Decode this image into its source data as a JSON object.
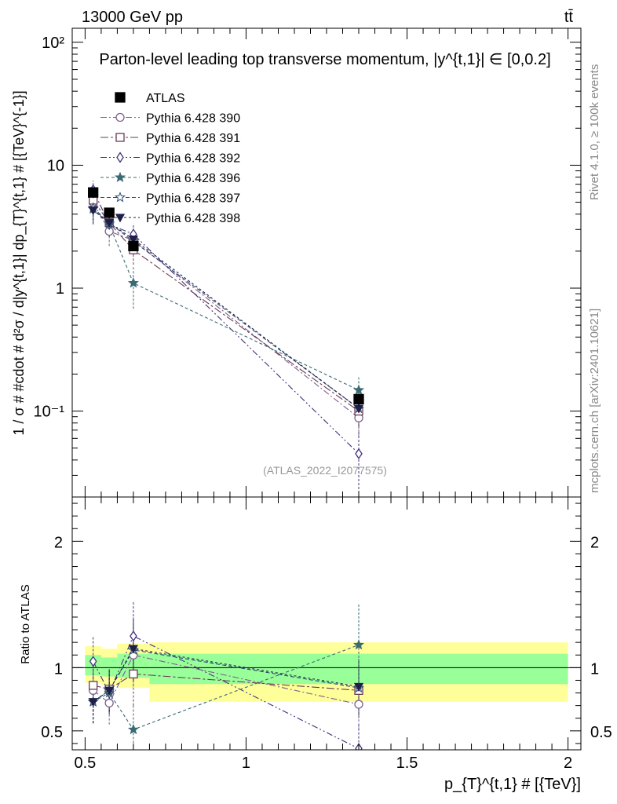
{
  "header": {
    "energy_label": "13000 GeV pp",
    "process_label": "tt̄",
    "side_label_top": "Rivet 4.1.0, ≥ 100k events",
    "side_label_bottom": "mcplots.cern.ch [arXiv:2401.10621]",
    "analysis_id": "(ATLAS_2022_I2077575)"
  },
  "colors": {
    "data": "#000000",
    "p390": "#7f5f8f",
    "p391": "#6b3a50",
    "p392": "#43307a",
    "p396": "#3a6a72",
    "p397": "#2a4a70",
    "p398": "#1f1f4a",
    "band_inner": "#99ff99",
    "band_outer": "#ffff99"
  },
  "chart_data": [
    {
      "type": "scatter",
      "panel": "main",
      "title": "Parton-level leading top transverse momentum, |y^{t,1}| ∈ [0,0.2]",
      "ylabel": "1 / σ # #cdot # d²σ / d|y^{t,1}| dp_{T}^{t,1} # [{TeV}^{-1}]",
      "yscale": "log",
      "ylim": [
        0.02,
        130
      ],
      "xlim": [
        0.46,
        2.04
      ],
      "yticks": [
        {
          "value": 0.1,
          "label": "10⁻¹"
        },
        {
          "value": 1,
          "label": "1"
        },
        {
          "value": 10,
          "label": "10"
        },
        {
          "value": 100,
          "label": "10²"
        }
      ],
      "legend_position": "upper-left",
      "series": [
        {
          "name": "ATLAS",
          "key": "data",
          "marker": "square-filled",
          "x": [
            0.525,
            0.575,
            0.65,
            1.35
          ],
          "values": [
            6.0,
            4.1,
            2.2,
            0.125
          ],
          "xerr": [
            0.025,
            0.025,
            0.05,
            0.65
          ],
          "yerr": [
            0.6,
            0.35,
            0.2,
            0.015
          ]
        },
        {
          "name": "Pythia 6.428 390",
          "key": "p390",
          "marker": "circle-open",
          "dash": "8,3,2,3",
          "x": [
            0.525,
            0.575,
            0.65,
            1.35
          ],
          "values": [
            5.0,
            2.9,
            2.45,
            0.088
          ],
          "yerr": [
            1.0,
            0.7,
            0.55,
            0.025
          ]
        },
        {
          "name": "Pythia 6.428 391",
          "key": "p391",
          "marker": "square-open",
          "dash": "10,3,3,3",
          "x": [
            0.525,
            0.575,
            0.65,
            1.35
          ],
          "values": [
            5.2,
            3.4,
            2.05,
            0.1
          ],
          "yerr": [
            1.0,
            0.7,
            0.5,
            0.028
          ]
        },
        {
          "name": "Pythia 6.428 392",
          "key": "p392",
          "marker": "diamond-open",
          "dash": "8,3,2,3,2,3",
          "x": [
            0.525,
            0.575,
            0.65,
            1.35
          ],
          "values": [
            6.3,
            3.3,
            2.75,
            0.045
          ],
          "yerr": [
            1.2,
            0.7,
            0.6,
            0.025
          ]
        },
        {
          "name": "Pythia 6.428 396",
          "key": "p396",
          "marker": "star-filled",
          "dash": "4,3",
          "x": [
            0.525,
            0.575,
            0.65,
            1.35
          ],
          "values": [
            4.4,
            3.3,
            1.1,
            0.148
          ],
          "yerr": [
            1.0,
            0.7,
            0.42,
            0.04
          ]
        },
        {
          "name": "Pythia 6.428 397",
          "key": "p397",
          "marker": "star-open",
          "dash": "5,3",
          "x": [
            0.525,
            0.575,
            0.65,
            1.35
          ],
          "values": [
            4.5,
            3.4,
            2.4,
            0.105
          ],
          "yerr": [
            1.0,
            0.7,
            0.55,
            0.03
          ]
        },
        {
          "name": "Pythia 6.428 398",
          "key": "p398",
          "marker": "triangle-down-filled",
          "dash": "3,3",
          "x": [
            0.525,
            0.575,
            0.65,
            1.35
          ],
          "values": [
            4.3,
            3.4,
            2.5,
            0.105
          ],
          "yerr": [
            1.0,
            0.7,
            0.55,
            0.03
          ]
        }
      ]
    },
    {
      "type": "scatter",
      "panel": "ratio",
      "ylabel": "Ratio to ATLAS",
      "xlabel": "p_{T}^{t,1} # [{TeV}]",
      "ylim": [
        0.35,
        2.35
      ],
      "xlim": [
        0.46,
        2.04
      ],
      "xticks": [
        {
          "value": 0.5,
          "label": "0.5"
        },
        {
          "value": 1,
          "label": "1"
        },
        {
          "value": 1.5,
          "label": "1.5"
        },
        {
          "value": 2,
          "label": "2"
        }
      ],
      "yticks": [
        {
          "value": 0.5,
          "label": "0.5"
        },
        {
          "value": 1,
          "label": "1"
        },
        {
          "value": 2,
          "label": "2"
        }
      ],
      "bands": [
        {
          "xlo": 0.5,
          "xhi": 0.55,
          "inner": [
            0.94,
            1.1
          ],
          "outer": [
            0.88,
            1.17
          ]
        },
        {
          "xlo": 0.55,
          "xhi": 0.6,
          "inner": [
            0.93,
            1.08
          ],
          "outer": [
            0.86,
            1.15
          ]
        },
        {
          "xlo": 0.6,
          "xhi": 0.7,
          "inner": [
            0.92,
            1.11
          ],
          "outer": [
            0.84,
            1.19
          ]
        },
        {
          "xlo": 0.7,
          "xhi": 2.0,
          "inner": [
            0.87,
            1.11
          ],
          "outer": [
            0.73,
            1.2
          ]
        }
      ],
      "series": [
        {
          "key": "p390",
          "marker": "circle-open",
          "dash": "8,3,2,3",
          "x": [
            0.525,
            0.575,
            0.65,
            1.35
          ],
          "values": [
            0.82,
            0.72,
            1.1,
            0.71
          ],
          "yerr": [
            0.17,
            0.17,
            0.25,
            0.2
          ]
        },
        {
          "key": "p391",
          "marker": "square-open",
          "dash": "10,3,3,3",
          "x": [
            0.525,
            0.575,
            0.65,
            1.35
          ],
          "values": [
            0.86,
            0.83,
            0.95,
            0.82
          ],
          "yerr": [
            0.17,
            0.17,
            0.25,
            0.22
          ]
        },
        {
          "key": "p392",
          "marker": "diamond-open",
          "dash": "8,3,2,3,2,3",
          "x": [
            0.525,
            0.575,
            0.65,
            1.35
          ],
          "values": [
            1.05,
            0.8,
            1.25,
            0.36
          ],
          "yerr": [
            0.2,
            0.17,
            0.28,
            0.2
          ]
        },
        {
          "key": "p396",
          "marker": "star-filled",
          "dash": "4,3",
          "x": [
            0.525,
            0.575,
            0.65,
            1.35
          ],
          "values": [
            0.73,
            0.8,
            0.51,
            1.18
          ],
          "yerr": [
            0.17,
            0.17,
            0.2,
            0.32
          ]
        },
        {
          "key": "p397",
          "marker": "star-open",
          "dash": "5,3",
          "x": [
            0.525,
            0.575,
            0.65,
            1.35
          ],
          "values": [
            0.73,
            0.82,
            1.14,
            0.84
          ],
          "yerr": [
            0.17,
            0.17,
            0.25,
            0.22
          ]
        },
        {
          "key": "p398",
          "marker": "triangle-down-filled",
          "dash": "3,3",
          "x": [
            0.525,
            0.575,
            0.65,
            1.35
          ],
          "values": [
            0.73,
            0.82,
            1.15,
            0.85
          ],
          "yerr": [
            0.17,
            0.17,
            0.25,
            0.22
          ]
        }
      ]
    }
  ]
}
